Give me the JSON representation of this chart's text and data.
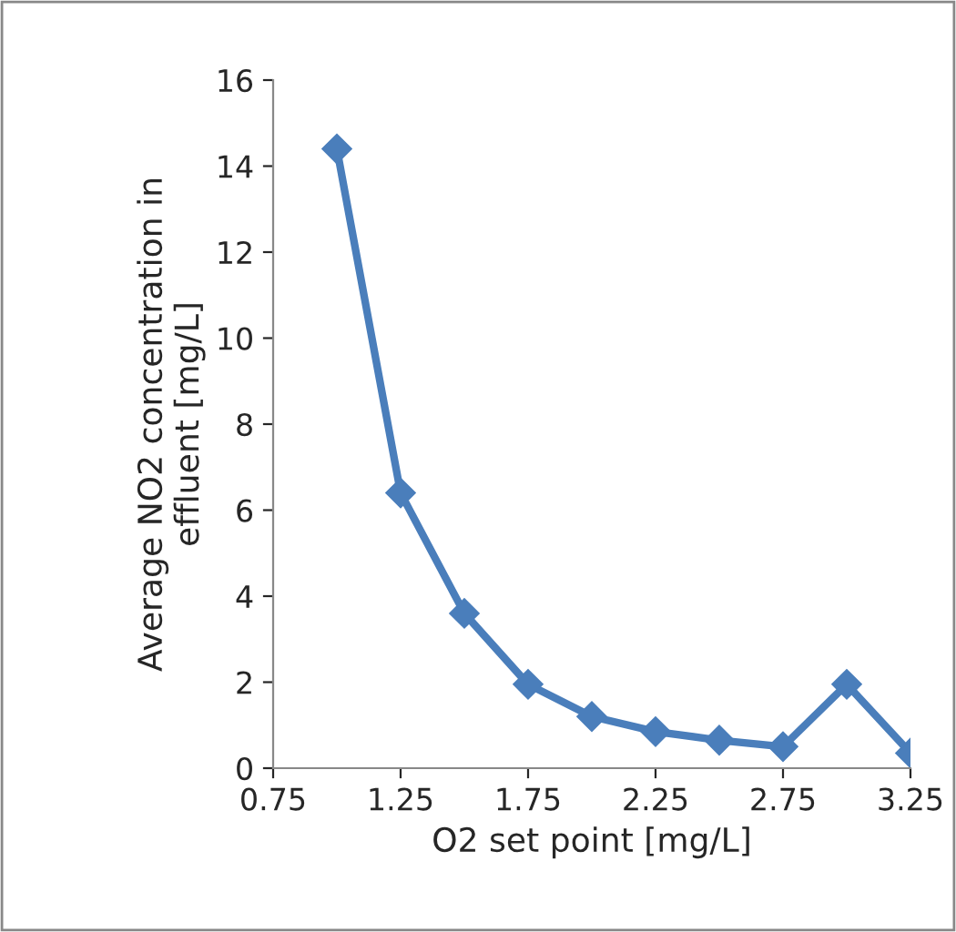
{
  "chart_data": {
    "type": "line",
    "xlabel": "O2 set point [mg/L]",
    "ylabel": "Average NO2 concentration in\neffluent [mg/L]",
    "x": [
      1.0,
      1.25,
      1.5,
      1.75,
      2.0,
      2.25,
      2.5,
      2.75,
      3.0,
      3.25
    ],
    "series": [
      {
        "color": "#4a7ebb",
        "values": [
          14.4,
          6.4,
          3.6,
          1.95,
          1.2,
          0.85,
          0.65,
          0.5,
          1.95,
          0.35
        ]
      }
    ],
    "xlim": [
      0.75,
      3.25
    ],
    "xticks": [
      0.75,
      1.25,
      1.75,
      2.25,
      2.75,
      3.25
    ],
    "ylim": [
      0,
      16
    ],
    "yticks": [
      0,
      2,
      4,
      6,
      8,
      10,
      12,
      14,
      16
    ],
    "marker": "diamond",
    "grid": false,
    "legend": false
  }
}
